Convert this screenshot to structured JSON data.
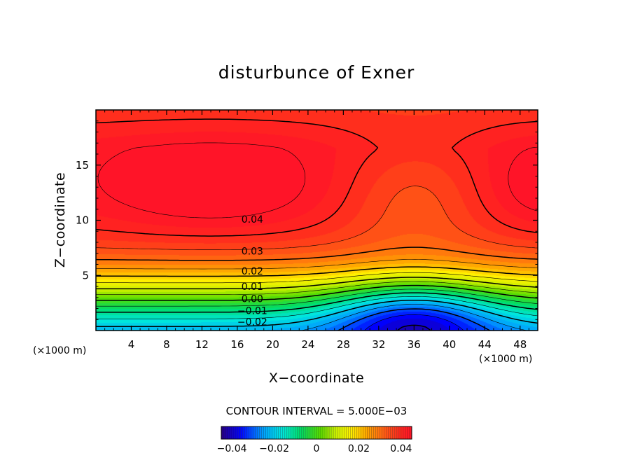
{
  "chart_data": {
    "type": "contour",
    "title": "disturbunce of Exner",
    "xlabel": "X−coordinate",
    "ylabel": "Z−coordinate",
    "x_unit": "(×1000 m)",
    "xlim": [
      0,
      50
    ],
    "ylim": [
      0,
      20
    ],
    "x_ticks": [
      4,
      8,
      12,
      16,
      20,
      24,
      28,
      32,
      36,
      40,
      44,
      48
    ],
    "x_tick_labels": [
      "4",
      "8",
      "12",
      "16",
      "20",
      "24",
      "28",
      "32",
      "36",
      "40",
      "44",
      "48"
    ],
    "y_ticks": [
      5,
      10,
      15
    ],
    "y_tick_labels": [
      "5",
      "10",
      "15"
    ],
    "contour_interval_text": "CONTOUR INTERVAL = 5.000E−03",
    "value_range": [
      -0.045,
      0.045
    ],
    "contour_labels": [
      {
        "text": "0.04",
        "x": 17.7,
        "z": 10.1
      },
      {
        "text": "0.03",
        "x": 17.7,
        "z": 7.2
      },
      {
        "text": "0.02",
        "x": 17.7,
        "z": 5.4
      },
      {
        "text": "0.01",
        "x": 17.7,
        "z": 4.0
      },
      {
        "text": "0.00",
        "x": 17.7,
        "z": 2.9
      },
      {
        "text": "−0.01",
        "x": 17.7,
        "z": 1.8
      },
      {
        "text": "−0.02",
        "x": 17.7,
        "z": 0.8
      }
    ],
    "colorbar": {
      "ticks": [
        -0.04,
        -0.02,
        0,
        0.02,
        0.04
      ],
      "tick_labels": [
        "−0.04",
        "−0.02",
        "0",
        "0.02",
        "0.04"
      ]
    }
  }
}
